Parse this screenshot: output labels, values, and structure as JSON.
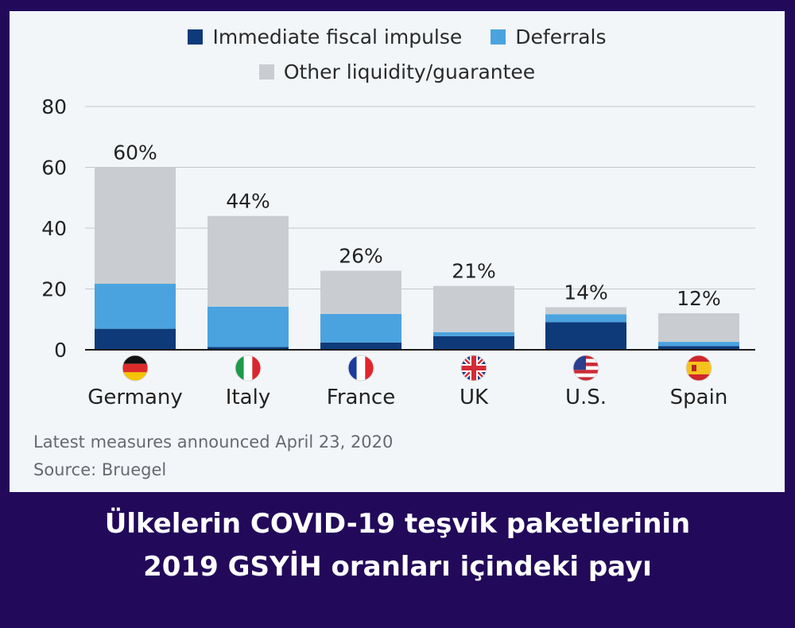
{
  "legend": [
    {
      "label": "Immediate fiscal impulse",
      "color": "#0e3a7a"
    },
    {
      "label": "Deferrals",
      "color": "#4aa3df"
    },
    {
      "label": "Other liquidity/guarantee",
      "color": "#c9cdd1"
    }
  ],
  "footnote": {
    "note": "Latest measures announced April 23, 2020",
    "source": "Source: Bruegel"
  },
  "caption": {
    "line1": "Ülkelerin COVID-19 teşvik paketlerinin",
    "line2": "2019 GSYİH oranları içindeki payı"
  },
  "colors": {
    "background": "#22095a",
    "card": "#f3f6f9",
    "immediate": "#0e3a7a",
    "deferrals": "#4aa3df",
    "other": "#c9cdd1"
  },
  "chart_data": {
    "type": "bar",
    "stacked": true,
    "categories": [
      "Germany",
      "Italy",
      "France",
      "UK",
      "U.S.",
      "Spain"
    ],
    "flag_icons": [
      "germany-flag-icon",
      "italy-flag-icon",
      "france-flag-icon",
      "uk-flag-icon",
      "us-flag-icon",
      "spain-flag-icon"
    ],
    "series": [
      {
        "name": "Immediate fiscal impulse",
        "values": [
          6.9,
          0.9,
          2.4,
          4.5,
          9.1,
          1.2
        ]
      },
      {
        "name": "Deferrals",
        "values": [
          14.8,
          13.3,
          9.4,
          1.3,
          2.6,
          1.4
        ]
      },
      {
        "name": "Other liquidity/guarantee",
        "values": [
          38.3,
          29.8,
          14.2,
          15.2,
          2.3,
          9.4
        ]
      }
    ],
    "totals_labels": [
      "60%",
      "44%",
      "26%",
      "21%",
      "14%",
      "12%"
    ],
    "ylim": [
      0,
      80
    ],
    "yticks": [
      "0",
      "20",
      "40",
      "60",
      "80"
    ],
    "grid": true,
    "legend_position": "top-center"
  }
}
